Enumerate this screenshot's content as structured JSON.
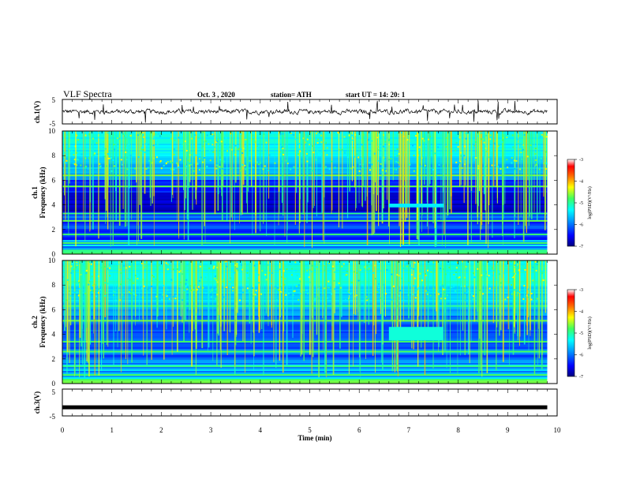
{
  "header": {
    "title": "VLF Spectra",
    "date": "Oct. 3  , 2020",
    "station": "station= ATH",
    "start_ut": "start  UT =   14: 20: 1"
  },
  "chart_data": [
    {
      "type": "line",
      "panel": "ch1-waveform",
      "ylabel": "ch.1(V)",
      "yticks": [
        "5",
        "-5"
      ],
      "ylim": [
        -5,
        5
      ],
      "xlim": [
        0,
        10
      ],
      "description_value_range": [
        -1.2,
        1.2
      ]
    },
    {
      "type": "heatmap",
      "panel": "ch1-spectrogram",
      "ylabel_line1": "ch.1",
      "ylabel_line2": "Frequency  (kHz)",
      "yticks": [
        "0",
        "2",
        "4",
        "6",
        "8",
        "10"
      ],
      "ylim": [
        0,
        10
      ],
      "xlim": [
        0,
        10
      ],
      "colorbar": {
        "label": "log(PSD)(V²/Hz)",
        "ticks": [
          "-3",
          "-4",
          "-5",
          "-6",
          "-7"
        ],
        "range": [
          -7,
          -3
        ]
      }
    },
    {
      "type": "heatmap",
      "panel": "ch2-spectrogram",
      "ylabel_line1": "ch.2",
      "ylabel_line2": "Frequency  (kHz)",
      "yticks": [
        "0",
        "2",
        "4",
        "6",
        "8",
        "10"
      ],
      "ylim": [
        0,
        10
      ],
      "xlim": [
        0,
        10
      ],
      "colorbar": {
        "label": "log(PSD)(V²/Hz)",
        "ticks": [
          "-3",
          "-4",
          "-5",
          "-6",
          "-7"
        ],
        "range": [
          -7,
          -3
        ]
      }
    },
    {
      "type": "line",
      "panel": "ch3-waveform",
      "ylabel": "ch.3(V)",
      "yticks": [
        "5",
        "-5"
      ],
      "ylim": [
        -5,
        5
      ],
      "xlim": [
        0,
        10
      ],
      "value": -1.8
    }
  ],
  "xaxis": {
    "label": "Time  (min)",
    "ticks": [
      "0",
      "1",
      "2",
      "3",
      "4",
      "5",
      "6",
      "7",
      "8",
      "9",
      "10"
    ]
  },
  "colors": {
    "background": "#ffffff",
    "trace": "#000000"
  }
}
